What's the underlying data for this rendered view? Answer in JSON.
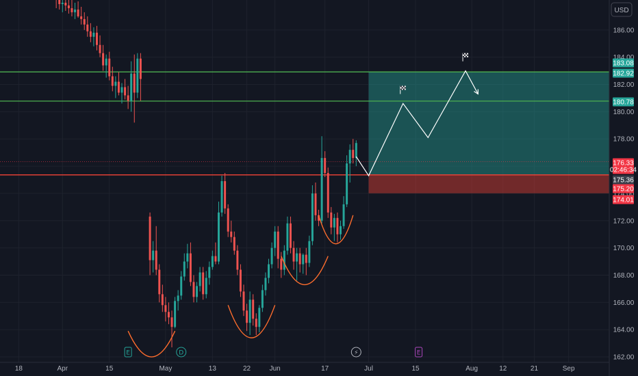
{
  "header": {
    "currency": "USD"
  },
  "colors": {
    "background": "#131722",
    "up": "#26a69a",
    "down": "#ef5350",
    "support_line": "#f44336",
    "resistance_line": "#4caf50",
    "target_zone": "#26a69a",
    "stop_zone": "#f44336",
    "pattern_arc": "#ff6d2d",
    "projection": "#ffffff"
  },
  "chart_data": {
    "type": "candlestick",
    "ylim": [
      161.6,
      188.2
    ],
    "y_ticks": [
      "162.00",
      "164.00",
      "166.00",
      "168.00",
      "170.00",
      "172.00",
      "174.00",
      "176.00",
      "178.00",
      "180.00",
      "182.00",
      "184.00",
      "186.00"
    ],
    "x_ticks": [
      {
        "label": "18",
        "x": 6
      },
      {
        "label": "Apr",
        "x": 20
      },
      {
        "label": "15",
        "x": 35
      },
      {
        "label": "May",
        "x": 53
      },
      {
        "label": "13",
        "x": 68
      },
      {
        "label": "22",
        "x": 79
      },
      {
        "label": "Jun",
        "x": 88
      },
      {
        "label": "17",
        "x": 104
      },
      {
        "label": "Jul",
        "x": 118
      },
      {
        "label": "15",
        "x": 133
      },
      {
        "label": "Aug",
        "x": 151
      },
      {
        "label": "12",
        "x": 161
      },
      {
        "label": "21",
        "x": 171
      },
      {
        "label": "Sep",
        "x": 182
      }
    ],
    "x_range": [
      0,
      195
    ],
    "candles": [
      [
        18,
        188.4,
        189.0,
        187.6,
        188.2
      ],
      [
        19,
        188.2,
        188.8,
        187.5,
        187.9
      ],
      [
        20,
        187.9,
        188.5,
        187.3,
        188.0
      ],
      [
        21,
        188.0,
        188.6,
        187.4,
        187.8
      ],
      [
        22,
        187.8,
        188.3,
        187.2,
        187.6
      ],
      [
        23,
        187.6,
        188.2,
        187.0,
        187.3
      ],
      [
        24,
        187.3,
        188.0,
        186.8,
        187.5
      ],
      [
        25,
        187.5,
        188.1,
        186.9,
        187.0
      ],
      [
        26,
        187.0,
        187.7,
        186.4,
        186.8
      ],
      [
        27,
        186.8,
        187.3,
        186.0,
        186.4
      ],
      [
        28,
        186.4,
        187.0,
        185.5,
        185.9
      ],
      [
        29,
        185.9,
        186.5,
        185.1,
        185.5
      ],
      [
        30,
        185.5,
        186.2,
        184.8,
        185.8
      ],
      [
        31,
        185.8,
        186.3,
        184.5,
        184.9
      ],
      [
        32,
        184.9,
        185.6,
        184.0,
        184.3
      ],
      [
        33,
        184.3,
        184.9,
        183.0,
        183.4
      ],
      [
        34,
        183.4,
        184.2,
        182.5,
        183.9
      ],
      [
        35,
        183.9,
        184.4,
        182.3,
        182.6
      ],
      [
        36,
        182.6,
        183.3,
        181.5,
        181.9
      ],
      [
        37,
        181.9,
        182.6,
        181.0,
        182.2
      ],
      [
        38,
        182.2,
        182.9,
        181.2,
        181.4
      ],
      [
        39,
        181.4,
        182.1,
        180.6,
        181.8
      ],
      [
        40,
        181.8,
        182.4,
        180.9,
        181.2
      ],
      [
        41,
        181.2,
        181.9,
        180.2,
        180.8
      ],
      [
        42,
        180.8,
        183.7,
        180.0,
        182.8
      ],
      [
        43,
        182.8,
        184.2,
        179.2,
        181.4
      ],
      [
        44,
        181.4,
        184.3,
        181.0,
        183.9
      ],
      [
        45,
        183.9,
        184.3,
        180.8,
        182.4
      ],
      [
        48,
        172.3,
        172.6,
        168.0,
        169.1
      ],
      [
        49,
        169.1,
        170.5,
        168.2,
        169.8
      ],
      [
        50,
        169.8,
        171.6,
        168.0,
        168.4
      ],
      [
        51,
        168.4,
        168.8,
        166.0,
        166.6
      ],
      [
        52,
        166.6,
        167.3,
        165.3,
        165.8
      ],
      [
        53,
        165.8,
        166.4,
        164.6,
        165.3
      ],
      [
        54,
        165.3,
        166.0,
        164.4,
        164.9
      ],
      [
        55,
        164.9,
        165.4,
        162.7,
        164.2
      ],
      [
        56,
        164.2,
        166.4,
        164.1,
        166.1
      ],
      [
        57,
        166.1,
        166.9,
        165.4,
        166.5
      ],
      [
        58,
        166.5,
        168.3,
        166.2,
        167.9
      ],
      [
        59,
        167.9,
        169.6,
        167.6,
        169.0
      ],
      [
        60,
        169.0,
        170.3,
        168.5,
        169.6
      ],
      [
        61,
        169.6,
        170.4,
        167.2,
        167.5
      ],
      [
        62,
        167.5,
        168.0,
        166.0,
        166.4
      ],
      [
        63,
        166.4,
        167.5,
        166.0,
        167.2
      ],
      [
        64,
        167.2,
        168.6,
        166.8,
        168.2
      ],
      [
        65,
        168.2,
        168.6,
        166.2,
        166.6
      ],
      [
        66,
        166.6,
        168.3,
        166.3,
        167.8
      ],
      [
        67,
        167.8,
        169.0,
        167.3,
        168.6
      ],
      [
        68,
        168.6,
        169.8,
        168.4,
        169.4
      ],
      [
        69,
        169.4,
        170.4,
        168.8,
        169.0
      ],
      [
        70,
        169.0,
        173.4,
        168.8,
        172.6
      ],
      [
        71,
        172.6,
        175.3,
        172.3,
        174.9
      ],
      [
        72,
        174.9,
        175.5,
        172.5,
        172.9
      ],
      [
        73,
        172.9,
        173.2,
        170.8,
        171.2
      ],
      [
        74,
        171.2,
        172.0,
        170.4,
        170.8
      ],
      [
        75,
        170.8,
        171.2,
        169.5,
        169.8
      ],
      [
        76,
        169.8,
        170.2,
        168.0,
        168.4
      ],
      [
        77,
        168.4,
        168.8,
        166.4,
        166.8
      ],
      [
        78,
        166.8,
        167.3,
        165.0,
        165.4
      ],
      [
        79,
        165.4,
        165.9,
        163.9,
        164.5
      ],
      [
        80,
        164.5,
        166.8,
        163.6,
        166.2
      ],
      [
        81,
        166.2,
        166.6,
        164.3,
        164.8
      ],
      [
        82,
        164.8,
        165.2,
        163.6,
        164.2
      ],
      [
        83,
        164.2,
        165.8,
        163.8,
        165.6
      ],
      [
        84,
        165.6,
        167.3,
        165.3,
        166.9
      ],
      [
        85,
        166.9,
        168.2,
        166.5,
        167.8
      ],
      [
        86,
        167.8,
        169.2,
        167.4,
        168.8
      ],
      [
        87,
        168.8,
        170.4,
        168.5,
        170.0
      ],
      [
        88,
        170.0,
        171.6,
        169.4,
        171.2
      ],
      [
        89,
        171.2,
        171.6,
        168.5,
        169.2
      ],
      [
        90,
        169.2,
        169.7,
        167.8,
        168.4
      ],
      [
        91,
        168.4,
        170.2,
        168.0,
        169.8
      ],
      [
        92,
        169.8,
        172.3,
        169.5,
        171.8
      ],
      [
        93,
        171.8,
        172.3,
        169.6,
        170.0
      ],
      [
        94,
        170.0,
        170.5,
        168.4,
        169.0
      ],
      [
        95,
        169.0,
        170.0,
        167.6,
        169.6
      ],
      [
        96,
        169.6,
        170.0,
        168.2,
        168.8
      ],
      [
        97,
        168.8,
        169.6,
        168.1,
        169.5
      ],
      [
        98,
        169.5,
        170.0,
        168.0,
        168.9
      ],
      [
        99,
        168.9,
        170.9,
        168.6,
        170.5
      ],
      [
        100,
        170.5,
        174.6,
        170.2,
        174.0
      ],
      [
        101,
        174.0,
        174.8,
        172.0,
        172.4
      ],
      [
        102,
        172.4,
        172.8,
        171.6,
        172.0
      ],
      [
        103,
        172.0,
        178.2,
        171.8,
        176.6
      ],
      [
        104,
        176.6,
        177.1,
        175.2,
        175.5
      ],
      [
        105,
        175.5,
        175.9,
        172.2,
        172.6
      ],
      [
        106,
        172.6,
        173.0,
        171.0,
        171.5
      ],
      [
        107,
        171.5,
        172.5,
        170.5,
        172.2
      ],
      [
        108,
        172.2,
        172.6,
        170.4,
        171.0
      ],
      [
        109,
        171.0,
        172.0,
        170.6,
        171.6
      ],
      [
        110,
        171.6,
        173.8,
        171.4,
        173.2
      ],
      [
        111,
        173.2,
        176.8,
        173.0,
        176.2
      ],
      [
        112,
        176.2,
        177.6,
        174.8,
        177.2
      ],
      [
        113,
        177.2,
        178.0,
        176.2,
        176.6
      ],
      [
        114,
        176.6,
        177.9,
        176.0,
        177.7
      ]
    ],
    "horizontal_lines": [
      {
        "name": "resistance-1",
        "value": 182.92,
        "color": "#4caf50"
      },
      {
        "name": "resistance-2",
        "value": 180.78,
        "color": "#4caf50"
      },
      {
        "name": "support",
        "value": 175.36,
        "color": "#f44336"
      }
    ],
    "target_zone": {
      "x_start": 118,
      "x_end": 195,
      "y_low": 175.36,
      "y_high": 182.92
    },
    "stop_zone": {
      "x_start": 118,
      "x_end": 195,
      "y_low": 174.01,
      "y_high": 175.36
    },
    "price_tags": [
      {
        "label": "183.08",
        "value": 183.08,
        "color": "#26a69a"
      },
      {
        "label": "182.92",
        "value": 182.92,
        "color": "#26a69a"
      },
      {
        "label": "180.78",
        "value": 180.78,
        "color": "#26a69a"
      },
      {
        "label": "176.33",
        "value": 176.33,
        "color": "#f23645"
      },
      {
        "label": "02:46:34",
        "value": 175.86,
        "color": "#f23645"
      },
      {
        "label": "175.36",
        "value": 175.36,
        "color": "#3a3e4a"
      },
      {
        "label": "175.20",
        "value": 175.2,
        "color": "#f23645"
      },
      {
        "label": "174.01",
        "value": 174.01,
        "color": "#f23645"
      }
    ],
    "projection_path": [
      [
        114,
        176.7
      ],
      [
        118,
        175.3
      ],
      [
        129,
        180.6
      ],
      [
        137,
        178.1
      ],
      [
        149,
        183.0
      ],
      [
        153,
        181.3
      ]
    ],
    "flags": [
      [
        129,
        181.6
      ],
      [
        149,
        184.0
      ]
    ],
    "pattern_arcs": [
      {
        "x_start": 41,
        "x_end": 56,
        "y_top": 163.9,
        "y_bottom": 162.0
      },
      {
        "x_start": 73,
        "x_end": 88,
        "y_top": 165.8,
        "y_bottom": 163.4
      },
      {
        "x_start": 90,
        "x_end": 105,
        "y_top": 169.4,
        "y_bottom": 167.3
      },
      {
        "x_start": 102,
        "x_end": 113,
        "y_top": 172.4,
        "y_bottom": 170.3
      }
    ],
    "event_markers": [
      {
        "label": "E",
        "x": 41
      },
      {
        "label": "D",
        "x": 58
      },
      {
        "label": "⚡",
        "x": 114
      },
      {
        "label": "E",
        "x": 134
      }
    ]
  }
}
